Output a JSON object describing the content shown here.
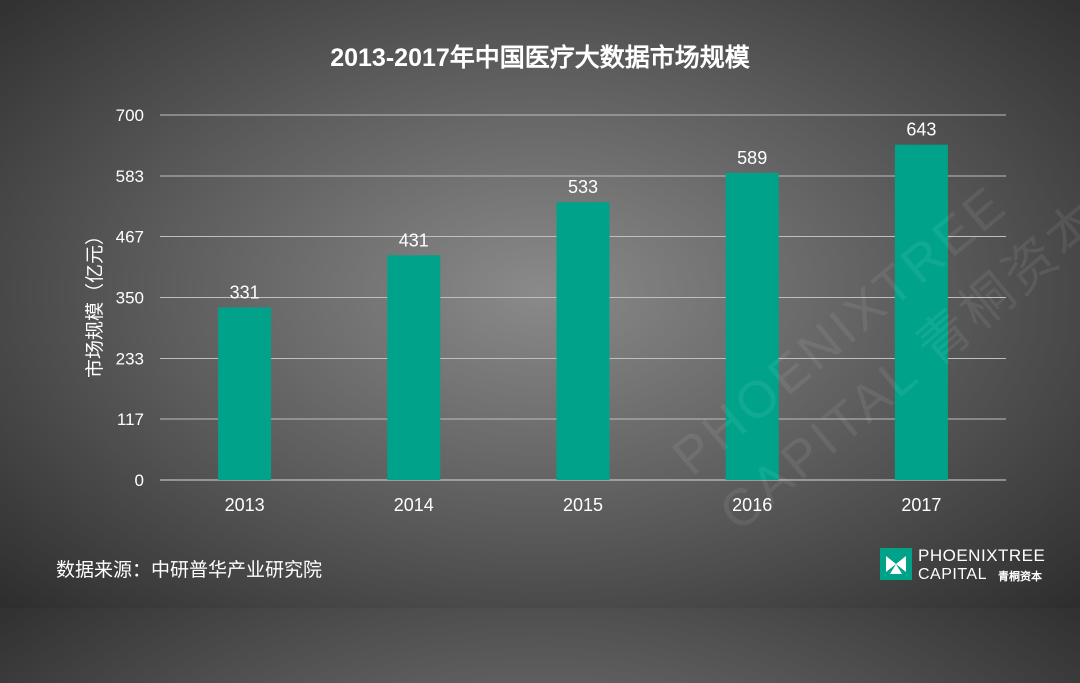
{
  "chart_data": {
    "type": "bar",
    "title": "2013-2017年中国医疗大数据市场规模",
    "xlabel": "",
    "ylabel": "市场规模（亿元）",
    "categories": [
      "2013",
      "2014",
      "2015",
      "2016",
      "2017"
    ],
    "values": [
      331,
      431,
      533,
      589,
      643
    ],
    "data_labels": [
      "331",
      "431",
      "533",
      "589",
      "643"
    ],
    "ylim": [
      0,
      700
    ],
    "yticks": [
      0,
      117,
      233,
      350,
      467,
      583,
      700
    ],
    "ytick_labels": [
      "0",
      "117",
      "233",
      "350",
      "467",
      "583",
      "700"
    ],
    "bar_color": "#00a38a",
    "grid": true
  },
  "source": "数据来源：中研普华产业研究院",
  "logo": {
    "name_line1": "PHOENIXTREE",
    "name_line2": "CAPITAL",
    "name_cn": "青桐资本",
    "icon": "phoenixtree-logo-icon",
    "icon_color": "#00a38a"
  },
  "watermark": {
    "line1": "PHOENIXTREE",
    "line2": "CAPITAL 青桐资本"
  }
}
